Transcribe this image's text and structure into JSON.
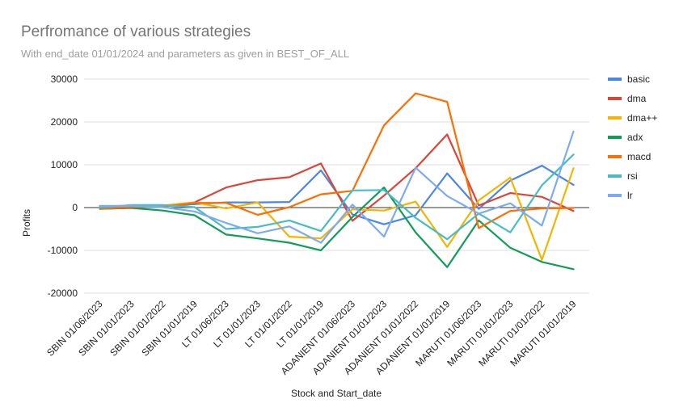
{
  "chart_data": {
    "type": "line",
    "title": "Perfromance of various strategies",
    "subtitle": "With end_date 01/01/2024 and parameters as given in BEST_OF_ALL",
    "xlabel": "Stock and Start_date",
    "ylabel": "Profits",
    "ylim": [
      -20000,
      30000
    ],
    "yticks": [
      30000,
      20000,
      10000,
      0,
      -10000,
      -20000
    ],
    "ytick_labels": [
      "30000",
      "20000",
      "10000",
      "0",
      "-10000",
      "-20000"
    ],
    "grid": true,
    "legend_position": "right",
    "categories": [
      "SBIN 01/06/2023",
      "SBIN 01/01/2023",
      "SBIN 01/01/2022",
      "SBIN 01/01/2019",
      "LT 01/06/2023",
      "LT 01/01/2023",
      "LT 01/01/2022",
      "LT 01/01/2019",
      "ADANIENT 01/06/2023",
      "ADANIENT 01/01/2023",
      "ADANIENT 01/01/2022",
      "ADANIENT 01/01/2019",
      "MARUTI 01/06/2023",
      "MARUTI 01/01/2023",
      "MARUTI 01/01/2022",
      "MARUTI 01/01/2019"
    ],
    "series": [
      {
        "name": "basic",
        "color": "#4a86e8",
        "values": [
          200,
          200,
          300,
          800,
          1200,
          1200,
          1300,
          8700,
          -1600,
          -3900,
          -1800,
          8000,
          -300,
          6300,
          9800,
          5300
        ]
      },
      {
        "name": "dma",
        "color": "#db4437",
        "values": [
          100,
          300,
          400,
          1200,
          4700,
          6400,
          7100,
          10300,
          -3100,
          2800,
          9200,
          17100,
          500,
          3400,
          2500,
          -800
        ]
      },
      {
        "name": "dma++",
        "color": "#f4b400",
        "values": [
          100,
          300,
          500,
          1200,
          -200,
          1200,
          -6800,
          -7200,
          -400,
          -700,
          1400,
          -9200,
          1700,
          7000,
          -12200,
          9200
        ]
      },
      {
        "name": "adx",
        "color": "#0f9d58",
        "values": [
          -300,
          -100,
          -700,
          -1800,
          -6300,
          -7200,
          -8200,
          -10000,
          -2200,
          4700,
          -5800,
          -13900,
          -3000,
          -9400,
          -12700,
          -14400
        ]
      },
      {
        "name": "macd",
        "color": "#ff6d00",
        "values": [
          -300,
          100,
          200,
          1100,
          1100,
          -1700,
          100,
          3100,
          3900,
          19200,
          26700,
          24700,
          -4800,
          -800,
          -200,
          -100
        ]
      },
      {
        "name": "rsi",
        "color": "#46bdc6",
        "values": [
          0,
          600,
          600,
          100,
          -5000,
          -4500,
          -3000,
          -5500,
          4000,
          4100,
          -2400,
          -7400,
          -1400,
          -5800,
          5200,
          12400
        ]
      },
      {
        "name": "lr",
        "color": "#7baaf7",
        "values": [
          400,
          400,
          100,
          -900,
          -3600,
          -6000,
          -4400,
          -8200,
          700,
          -6800,
          9300,
          2700,
          -1400,
          1000,
          -4200,
          17800
        ]
      }
    ]
  }
}
